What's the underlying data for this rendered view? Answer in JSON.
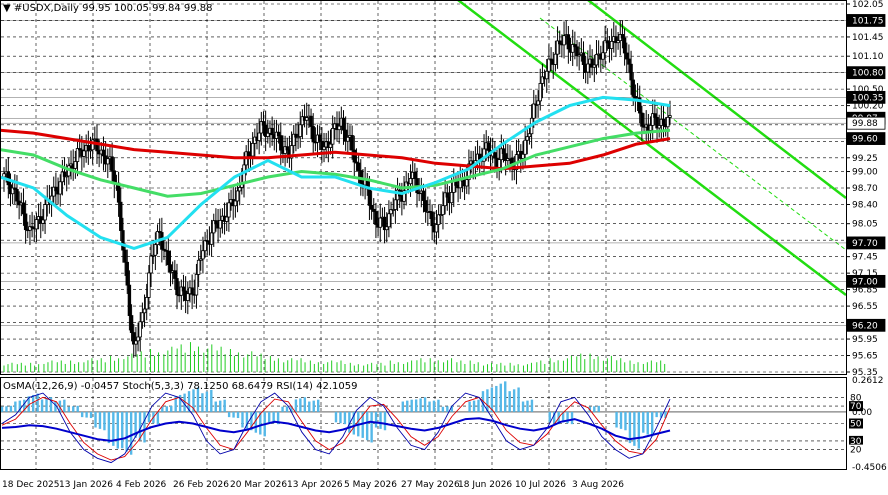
{
  "header": {
    "symbol_line": "▼ #USDX,Daily  99.95 100.05 99.84 99.88",
    "indicator_line": "OsMA(12,26,9) -0.0457  Stoch(5,3,3) 78.1250 68.6479  RSI(14) 42.1059"
  },
  "colors": {
    "background": "#ffffff",
    "grid": "#000000",
    "candle": "#000000",
    "ma_red": "#dd0000",
    "ma_green": "#44dd66",
    "ma_cyan": "#22e0f0",
    "channel": "#22dd11",
    "volume": "#22cc22",
    "osma": "#55b8e8",
    "stoch_main": "#0000aa",
    "stoch_signal": "#dd0000",
    "rsi": "#0000cc",
    "price_tag": "#000000"
  },
  "chart_data": [
    {
      "type": "candlestick",
      "title": "#USDX,Daily",
      "ohlc_last": {
        "open": 99.95,
        "high": 100.05,
        "low": 99.84,
        "close": 99.88
      },
      "ylim": [
        95.35,
        102.05
      ],
      "y_ticks": [
        "102.05",
        "101.75",
        "101.45",
        "101.10",
        "100.80",
        "100.50",
        "100.20",
        "99.85",
        "99.55",
        "99.25",
        "99.00",
        "98.70",
        "98.40",
        "98.05",
        "97.75",
        "97.45",
        "97.15",
        "96.85",
        "96.55",
        "96.25",
        "95.95",
        "95.65",
        "95.35"
      ],
      "x_labels": [
        "18 Dec 2025",
        "13 Jan 2026",
        "4 Feb 2026",
        "26 Feb 2026",
        "20 Mar 2026",
        "13 Apr 2026",
        "5 May 2026",
        "27 May 2026",
        "18 Jun 2026",
        "10 Jul 2026",
        "3 Aug 2026"
      ],
      "level_tags": [
        {
          "label": "101.75",
          "value": 101.75,
          "dark": true
        },
        {
          "label": "100.80",
          "value": 100.8,
          "dark": true
        },
        {
          "label": "100.35",
          "value": 100.35,
          "dark": true
        },
        {
          "label": "99.97",
          "value": 99.97,
          "dark": true
        },
        {
          "label": "99.88",
          "value": 99.88,
          "dark": false
        },
        {
          "label": "99.60",
          "value": 99.6,
          "dark": true
        },
        {
          "label": "97.70",
          "value": 97.7,
          "dark": true
        },
        {
          "label": "97.00",
          "value": 97.0,
          "dark": true
        },
        {
          "label": "96.20",
          "value": 96.2,
          "dark": true
        }
      ],
      "close_path": [
        98.9,
        98.7,
        98.3,
        97.9,
        98.1,
        98.4,
        98.7,
        98.9,
        99.2,
        99.35,
        99.5,
        99.4,
        99.2,
        98.8,
        97.2,
        95.8,
        96.3,
        97.4,
        97.9,
        97.3,
        96.9,
        96.7,
        96.9,
        97.6,
        97.9,
        98.1,
        98.3,
        98.6,
        99.2,
        99.6,
        99.8,
        99.7,
        99.5,
        99.3,
        99.8,
        100.0,
        99.6,
        99.4,
        99.7,
        99.9,
        99.5,
        99.0,
        98.6,
        98.1,
        98.0,
        98.4,
        98.6,
        98.9,
        98.7,
        98.2,
        98.0,
        98.5,
        98.7,
        98.8,
        99.1,
        99.3,
        99.4,
        99.2,
        99.3,
        99.1,
        99.4,
        99.9,
        100.6,
        100.9,
        101.3,
        101.4,
        101.2,
        101.0,
        100.9,
        101.2,
        101.3,
        101.5,
        101.1,
        100.3,
        99.8,
        99.9,
        99.9,
        99.88
      ],
      "moving_averages": [
        {
          "color": "red",
          "values": [
            99.75,
            99.7,
            99.6,
            99.5,
            99.4,
            99.35,
            99.3,
            99.25,
            99.25,
            99.3,
            99.35,
            99.3,
            99.25,
            99.15,
            99.1,
            99.05,
            99.1,
            99.15,
            99.3,
            99.5,
            99.6
          ]
        },
        {
          "color": "green",
          "values": [
            99.4,
            99.3,
            99.05,
            98.85,
            98.7,
            98.55,
            98.6,
            98.75,
            98.9,
            99.0,
            98.95,
            98.85,
            98.7,
            98.75,
            98.9,
            99.05,
            99.3,
            99.45,
            99.6,
            99.7,
            99.75
          ]
        },
        {
          "color": "cyan",
          "values": [
            98.9,
            98.7,
            98.2,
            97.8,
            97.6,
            97.8,
            98.4,
            98.9,
            99.2,
            98.9,
            98.9,
            98.7,
            98.6,
            98.8,
            99.05,
            99.5,
            99.9,
            100.2,
            100.35,
            100.3,
            100.2
          ]
        }
      ],
      "volume": [
        4,
        4,
        4,
        5,
        5,
        5,
        6,
        6,
        7,
        8,
        9,
        10,
        11,
        12,
        13,
        12,
        11,
        10,
        9,
        8,
        7,
        6,
        6,
        5,
        5,
        5,
        4,
        4,
        4,
        5,
        5,
        6,
        6,
        6,
        5,
        5,
        4,
        4,
        4,
        4,
        5,
        6,
        7,
        8,
        8,
        7,
        6,
        5,
        5,
        5
      ],
      "series": [
        {
          "name": "#USDX,Daily"
        }
      ]
    },
    {
      "type": "oscillator",
      "title": "OsMA(12,26,9) -0.0457  Stoch(5,3,3) 78.1250 68.6479  RSI(14) 42.1059",
      "ylim": [
        -0.4506,
        0.2612
      ],
      "left_labels": [
        {
          "label": "0.2612",
          "value": 0.2612
        },
        {
          "label": "0.00",
          "value": 0.0
        },
        {
          "label": "-0.4506",
          "value": -0.4506
        }
      ],
      "right_levels": [
        "80",
        "70",
        "50",
        "30",
        "20"
      ],
      "osma": [
        0.05,
        0.1,
        0.15,
        0.12,
        0.1,
        0.05,
        -0.05,
        -0.15,
        -0.3,
        -0.35,
        -0.25,
        -0.1,
        0.05,
        0.15,
        0.2,
        0.18,
        0.1,
        -0.05,
        -0.15,
        -0.2,
        -0.1,
        0.05,
        0.12,
        0.1,
        0.0,
        -0.1,
        -0.2,
        -0.25,
        -0.15,
        0.0,
        0.1,
        0.12,
        0.1,
        0.05,
        0.0,
        0.1,
        0.2,
        0.25,
        0.2,
        0.1,
        0.0,
        -0.1,
        -0.1,
        0.0,
        0.05,
        0.0,
        -0.15,
        -0.3,
        -0.2,
        -0.05
      ],
      "stochastic_main": [
        50,
        60,
        80,
        85,
        70,
        40,
        20,
        10,
        5,
        15,
        40,
        70,
        85,
        80,
        60,
        30,
        15,
        20,
        50,
        75,
        85,
        70,
        40,
        20,
        15,
        35,
        65,
        80,
        70,
        45,
        25,
        20,
        40,
        70,
        85,
        80,
        55,
        30,
        20,
        25,
        45,
        75,
        80,
        60,
        35,
        20,
        10,
        15,
        45,
        78
      ],
      "stochastic_signal": [
        48,
        55,
        72,
        80,
        75,
        50,
        28,
        15,
        8,
        12,
        30,
        55,
        75,
        80,
        68,
        45,
        25,
        20,
        40,
        62,
        78,
        75,
        52,
        30,
        20,
        28,
        50,
        70,
        72,
        55,
        35,
        25,
        35,
        58,
        75,
        80,
        65,
        42,
        28,
        25,
        38,
        60,
        75,
        68,
        48,
        30,
        18,
        15,
        32,
        68
      ],
      "rsi": [
        45,
        46,
        48,
        47,
        44,
        40,
        36,
        32,
        30,
        33,
        40,
        46,
        50,
        52,
        50,
        46,
        42,
        40,
        43,
        48,
        52,
        50,
        46,
        42,
        40,
        43,
        48,
        52,
        50,
        47,
        44,
        42,
        45,
        50,
        55,
        56,
        53,
        48,
        44,
        42,
        45,
        52,
        55,
        50,
        44,
        36,
        32,
        34,
        38,
        42
      ]
    }
  ]
}
